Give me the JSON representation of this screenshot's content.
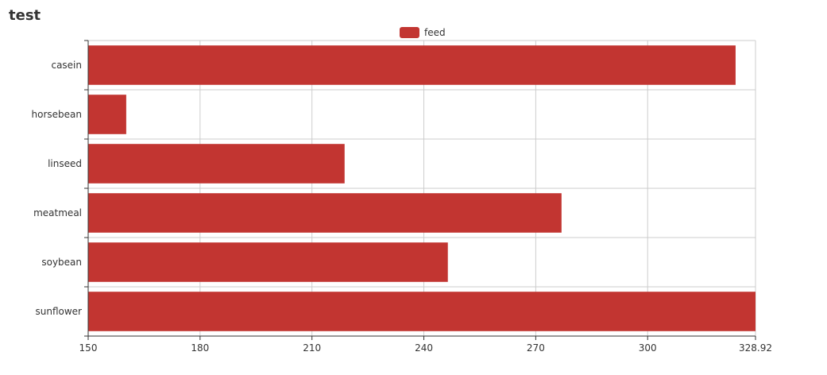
{
  "title": "test",
  "chart_data": {
    "type": "bar",
    "orientation": "horizontal",
    "title": "test",
    "categories": [
      "casein",
      "horsebean",
      "linseed",
      "meatmeal",
      "soybean",
      "sunflower"
    ],
    "series": [
      {
        "name": "feed",
        "values": [
          323.58,
          160.2,
          218.75,
          276.91,
          246.43,
          328.92
        ]
      }
    ],
    "xlabel": "",
    "ylabel": "",
    "xlim": [
      150,
      328.92
    ],
    "x_ticks": [
      "150",
      "180",
      "210",
      "240",
      "270",
      "300",
      "328.92"
    ],
    "grid": true,
    "legend_position": "top-center",
    "colors": {
      "bar": "#c23531",
      "grid": "#cccccc",
      "axis": "#333333"
    }
  }
}
